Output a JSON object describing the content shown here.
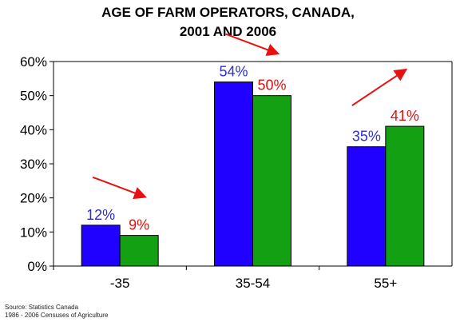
{
  "chart_data": {
    "type": "bar",
    "title_lines": [
      "AGE OF FARM OPERATORS, CANADA,",
      "2001 AND 2006"
    ],
    "categories": [
      "-35",
      "35-54",
      "55+"
    ],
    "series": [
      {
        "values": [
          12,
          54,
          35
        ],
        "labels": [
          "12%",
          "54%",
          "35%"
        ],
        "color": "#2000ff",
        "label_color": "#2f2fd0"
      },
      {
        "values": [
          9,
          50,
          41
        ],
        "labels": [
          "9%",
          "50%",
          "41%"
        ],
        "color": "#13a013",
        "label_color": "#e01010"
      }
    ],
    "ylim": [
      0,
      60
    ],
    "yticks": [
      "0%",
      "10%",
      "20%",
      "30%",
      "40%",
      "50%",
      "60%"
    ],
    "grid": false,
    "trend_arrows": [
      "down",
      "down",
      "up"
    ],
    "arrow_color": "#e81010"
  },
  "source": {
    "line1": "Source:  Statistics Canada",
    "line2": "1986 - 2006 Censuses of Agriculture"
  }
}
